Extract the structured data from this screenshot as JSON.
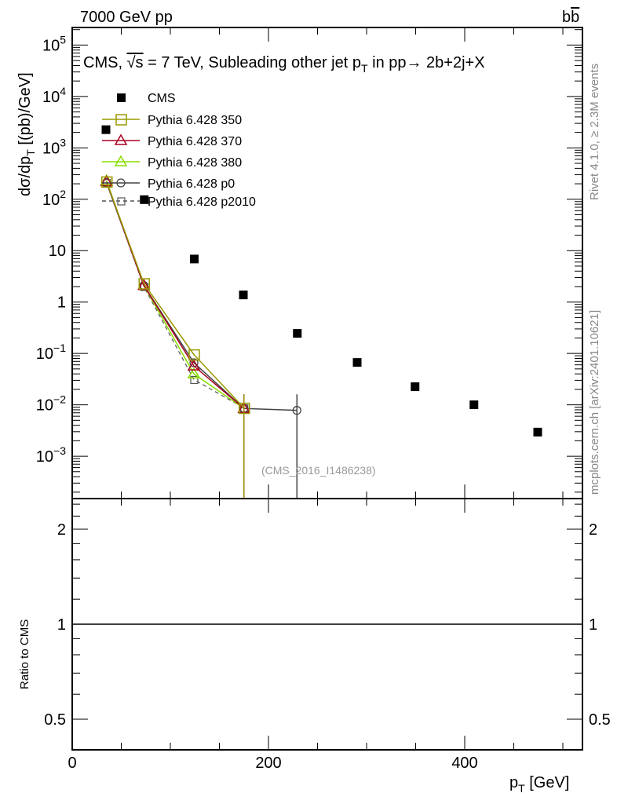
{
  "header": {
    "left": "7000 GeV pp",
    "right_base": "b",
    "right_bar": "b"
  },
  "side_labels": {
    "rivet": "Rivet 4.1.0, ≥ 2.3M events",
    "mcplots": "mcplots.cern.ch [arXiv:2401.10621]"
  },
  "chart_data": {
    "type": "scatter",
    "title_parts": {
      "pre": "CMS, ",
      "sqrt": "√s",
      "mid": " = 7 TeV, Subleading other jet p",
      "sub": "T",
      "post": " in pp→  2b+2j+X"
    },
    "analysis_id": "(CMS_2016_I1486238)",
    "ylabel": {
      "pre": "dσ/dp",
      "sub": "T",
      "post": "  [(pb)/GeV]"
    },
    "xlabel": {
      "pre": "p",
      "sub": "T",
      "post": " [GeV]"
    },
    "ratio_ylabel": "Ratio to CMS",
    "xlim": [
      0,
      520
    ],
    "ylim_log": [
      0.00015,
      220000
    ],
    "ratio_ylim_log": [
      0.4,
      2.5
    ],
    "x_ticks": [
      {
        "v": 0,
        "label": "0"
      },
      {
        "v": 200,
        "label": "200"
      },
      {
        "v": 400,
        "label": "400"
      }
    ],
    "y_ticks": [
      {
        "v": 100000,
        "base": "10",
        "exp": "5"
      },
      {
        "v": 10000,
        "base": "10",
        "exp": "4"
      },
      {
        "v": 1000,
        "base": "10",
        "exp": "3"
      },
      {
        "v": 100,
        "base": "10",
        "exp": "2"
      },
      {
        "v": 10,
        "base": "10",
        "exp": ""
      },
      {
        "v": 1,
        "base": "1",
        "exp": ""
      },
      {
        "v": 0.1,
        "base": "10",
        "exp": "−1"
      },
      {
        "v": 0.01,
        "base": "10",
        "exp": "−2"
      },
      {
        "v": 0.001,
        "base": "10",
        "exp": "−3"
      }
    ],
    "ratio_ticks": [
      {
        "v": 2,
        "label": "2"
      },
      {
        "v": 1,
        "label": "1"
      },
      {
        "v": 0.5,
        "label": "0.5"
      }
    ],
    "series": [
      {
        "name": "CMS",
        "color": "#000000",
        "marker": "filled-square",
        "line": "none",
        "x": [
          34,
          73,
          124,
          174,
          229,
          290,
          349,
          409,
          474
        ],
        "y": [
          2300,
          100,
          7,
          1.4,
          0.25,
          0.068,
          0.023,
          0.0102,
          0.003
        ]
      },
      {
        "name": "Pythia 6.428 350",
        "color": "#999900",
        "marker": "open-square",
        "line": "solid",
        "x": [
          35,
          73,
          124,
          175
        ],
        "y": [
          220,
          2.3,
          0.095,
          0.0087
        ]
      },
      {
        "name": "Pythia 6.428 370",
        "color": "#aa0022",
        "marker": "open-triangle",
        "line": "solid",
        "x": [
          35,
          73,
          124,
          175
        ],
        "y": [
          220,
          2.1,
          0.057,
          0.0085
        ]
      },
      {
        "name": "Pythia 6.428 380",
        "color": "#88dd00",
        "marker": "open-triangle",
        "line": "solid",
        "x": [
          35,
          73,
          124,
          175
        ],
        "y": [
          230,
          2.1,
          0.04,
          0.0085
        ]
      },
      {
        "name": "Pythia 6.428 p0",
        "color": "#444444",
        "marker": "open-circle",
        "line": "solid",
        "x": [
          35,
          73,
          124,
          175,
          229
        ],
        "y": [
          210,
          2.1,
          0.066,
          0.0085,
          0.0078
        ]
      },
      {
        "name": "Pythia 6.428 p2010",
        "color": "#555555",
        "marker": "open-square-small",
        "line": "dashed",
        "x": [
          35,
          73,
          124,
          175
        ],
        "y": [
          210,
          2.0,
          0.031,
          0.0087
        ]
      }
    ],
    "ratio_reference": 1
  }
}
